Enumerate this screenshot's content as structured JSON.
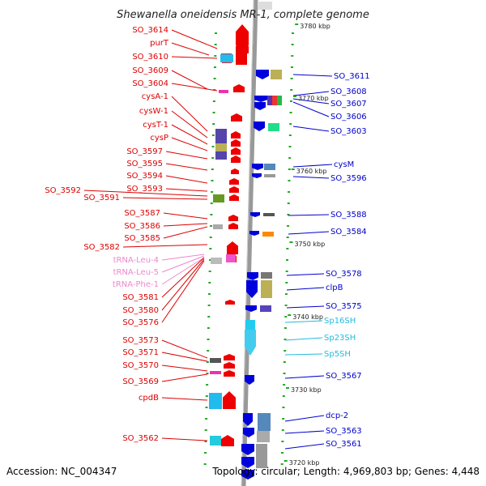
{
  "title": "Shewanella oneidensis MR-1, complete genome",
  "footer": {
    "accession": "Accession: NC_004347",
    "info": "Topology: circular; Length: 4,969,803 bp; Genes: 4,448"
  },
  "colors": {
    "left_label": "#dd0000",
    "right_label": "#0000cc",
    "trna_label": "#ee88cc",
    "rrna_label": "#22bbdd",
    "axis": "#999999",
    "tick": "#22aa22"
  },
  "kbp_marks": [
    {
      "kbp": 3780,
      "label": "3780 kbp"
    },
    {
      "kbp": 3770,
      "label": "3770 kbp"
    },
    {
      "kbp": 3760,
      "label": "3760 kbp"
    },
    {
      "kbp": 3750,
      "label": "3750 kbp"
    },
    {
      "kbp": 3740,
      "label": "3740 kbp"
    },
    {
      "kbp": 3730,
      "label": "3730 kbp"
    },
    {
      "kbp": 3720,
      "label": "3720 kbp"
    }
  ],
  "left_labels": [
    {
      "text": "SO_3614",
      "type": "gene"
    },
    {
      "text": "purT",
      "type": "gene"
    },
    {
      "text": "SO_3610",
      "type": "gene"
    },
    {
      "text": "SO_3609",
      "type": "gene"
    },
    {
      "text": "SO_3604",
      "type": "gene"
    },
    {
      "text": "cysA-1",
      "type": "gene"
    },
    {
      "text": "cysW-1",
      "type": "gene"
    },
    {
      "text": "cysT-1",
      "type": "gene"
    },
    {
      "text": "cysP",
      "type": "gene"
    },
    {
      "text": "SO_3597",
      "type": "gene"
    },
    {
      "text": "SO_3595",
      "type": "gene"
    },
    {
      "text": "SO_3594",
      "type": "gene"
    },
    {
      "text": "SO_3593",
      "type": "gene"
    },
    {
      "text": "SO_3592",
      "type": "gene"
    },
    {
      "text": "SO_3591",
      "type": "gene"
    },
    {
      "text": "SO_3587",
      "type": "gene"
    },
    {
      "text": "SO_3586",
      "type": "gene"
    },
    {
      "text": "SO_3585",
      "type": "gene"
    },
    {
      "text": "SO_3582",
      "type": "gene"
    },
    {
      "text": "tRNA-Leu-4",
      "type": "trna"
    },
    {
      "text": "tRNA-Leu-5",
      "type": "trna"
    },
    {
      "text": "tRNA-Phe-1",
      "type": "trna"
    },
    {
      "text": "SO_3581",
      "type": "gene"
    },
    {
      "text": "SO_3580",
      "type": "gene"
    },
    {
      "text": "SO_3576",
      "type": "gene"
    },
    {
      "text": "SO_3573",
      "type": "gene"
    },
    {
      "text": "SO_3571",
      "type": "gene"
    },
    {
      "text": "SO_3570",
      "type": "gene"
    },
    {
      "text": "SO_3569",
      "type": "gene"
    },
    {
      "text": "cpdB",
      "type": "gene"
    },
    {
      "text": "SO_3562",
      "type": "gene"
    }
  ],
  "right_labels": [
    {
      "text": "SO_3611",
      "type": "gene"
    },
    {
      "text": "SO_3608",
      "type": "gene"
    },
    {
      "text": "SO_3607",
      "type": "gene"
    },
    {
      "text": "SO_3606",
      "type": "gene"
    },
    {
      "text": "SO_3603",
      "type": "gene"
    },
    {
      "text": "cysM",
      "type": "gene"
    },
    {
      "text": "SO_3596",
      "type": "gene"
    },
    {
      "text": "SO_3588",
      "type": "gene"
    },
    {
      "text": "SO_3584",
      "type": "gene"
    },
    {
      "text": "SO_3578",
      "type": "gene"
    },
    {
      "text": "clpB",
      "type": "gene"
    },
    {
      "text": "SO_3575",
      "type": "gene"
    },
    {
      "text": "Sp16SH",
      "type": "rrna"
    },
    {
      "text": "Sp23SH",
      "type": "rrna"
    },
    {
      "text": "Sp5SH",
      "type": "rrna"
    },
    {
      "text": "SO_3567",
      "type": "gene"
    },
    {
      "text": "dcp-2",
      "type": "gene"
    },
    {
      "text": "SO_3563",
      "type": "gene"
    },
    {
      "text": "SO_3561",
      "type": "gene"
    }
  ]
}
